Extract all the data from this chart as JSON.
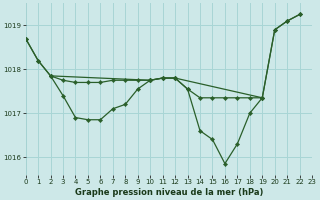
{
  "xlabel": "Graphe pression niveau de la mer (hPa)",
  "bg_color": "#cde8e8",
  "grid_color": "#a8d5d5",
  "line_color": "#2a5f2a",
  "xlim": [
    0,
    23
  ],
  "ylim": [
    1015.6,
    1019.5
  ],
  "yticks": [
    1016,
    1017,
    1018,
    1019
  ],
  "xticks": [
    0,
    1,
    2,
    3,
    4,
    5,
    6,
    7,
    8,
    9,
    10,
    11,
    12,
    13,
    14,
    15,
    16,
    17,
    18,
    19,
    20,
    21,
    22,
    23
  ],
  "line1_x": [
    0,
    1,
    2,
    10,
    11,
    12,
    19,
    20,
    21,
    22
  ],
  "line1_y": [
    1018.7,
    1018.2,
    1017.85,
    1017.75,
    1017.8,
    1017.8,
    1017.35,
    1018.9,
    1019.1,
    1019.25
  ],
  "line2_x": [
    0,
    1,
    2,
    3,
    4,
    5,
    6,
    7,
    8,
    9,
    10
  ],
  "line2_y": [
    1018.7,
    1018.2,
    1017.85,
    1017.4,
    1016.9,
    1016.85,
    1016.85,
    1017.1,
    1017.2,
    1017.55,
    1017.75
  ],
  "line3_x": [
    2,
    3,
    4,
    5,
    6,
    7,
    8,
    9,
    10,
    11,
    12,
    13,
    14,
    15,
    16,
    17,
    18,
    19
  ],
  "line3_y": [
    1017.85,
    1017.75,
    1017.7,
    1017.7,
    1017.7,
    1017.75,
    1017.75,
    1017.75,
    1017.75,
    1017.8,
    1017.8,
    1017.55,
    1017.35,
    1017.35,
    1017.35,
    1017.35,
    1017.35,
    1017.35
  ],
  "line4_x": [
    10,
    11,
    12,
    13,
    14,
    15,
    16,
    17,
    18,
    19,
    20,
    21,
    22
  ],
  "line4_y": [
    1017.75,
    1017.8,
    1017.8,
    1017.55,
    1016.6,
    1016.4,
    1015.85,
    1016.3,
    1017.0,
    1017.35,
    1018.9,
    1019.1,
    1019.25
  ]
}
